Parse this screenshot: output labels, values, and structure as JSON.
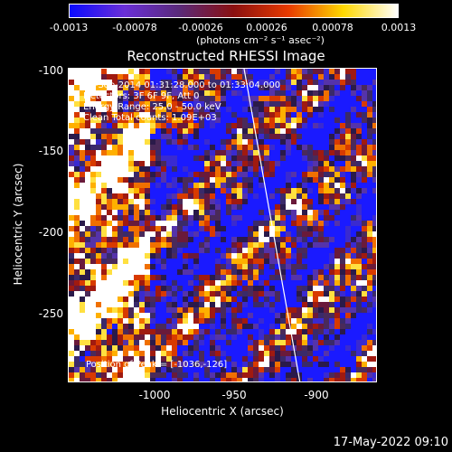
{
  "colorbar": {
    "ticks": [
      "-0.0013",
      "-0.00078",
      "-0.00026",
      "0.00026",
      "0.00078",
      "0.0013"
    ],
    "units": "(photons cm⁻² s⁻¹ asec⁻²)",
    "colors": [
      "#0a0aff",
      "#6a2fd8",
      "#5a2a7a",
      "#8a1010",
      "#e83a00",
      "#ffd800",
      "#ffffff"
    ]
  },
  "title": "Reconstructed RHESSI Image",
  "info": {
    "line1": "20-Sep-2014 01:31:28.000 to 01:33:04.000",
    "line2": "Detectors: 3F 6F 9F, Att 0",
    "line3": "Energy Range: 25.0 - 50.0 keV",
    "line4": "Clean     Total counts: 1.09E+03",
    "peak": "Position of Peak = [-1036,-126]"
  },
  "axes": {
    "xlabel": "Heliocentric X (arcsec)",
    "ylabel": "Heliocentric Y (arcsec)",
    "xticks": [
      "-1000",
      "-950",
      "-900"
    ],
    "yticks": [
      "-100",
      "-150",
      "-200",
      "-250"
    ]
  },
  "footer": {
    "date": "17-May-2022 09:10"
  }
}
